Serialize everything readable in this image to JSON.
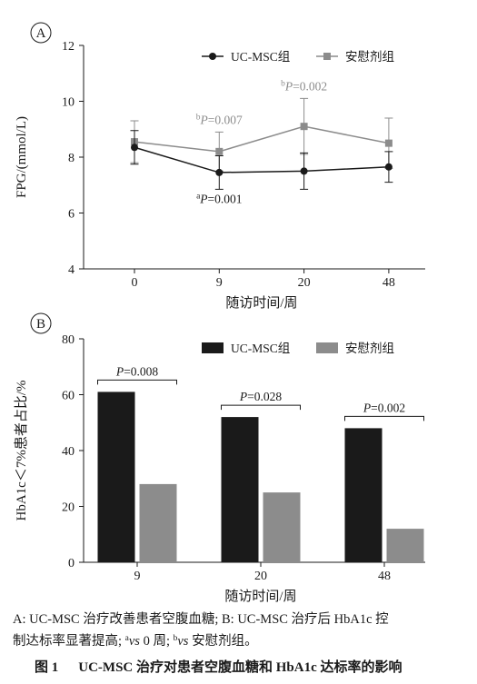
{
  "chart_data": [
    {
      "panel": "A",
      "type": "line",
      "x": [
        "0",
        "9",
        "20",
        "48"
      ],
      "xlabel": "随访时间/周",
      "ylabel": "FPG/(mmol/L)",
      "ylim": [
        4,
        12
      ],
      "yticks": [
        "4",
        "6",
        "8",
        "10",
        "12"
      ],
      "grid": false,
      "legend": "top-right",
      "series": [
        {
          "name": "UC-MSC组",
          "values": [
            8.35,
            7.45,
            7.5,
            7.65
          ],
          "error": [
            0.6,
            0.6,
            0.65,
            0.55
          ],
          "color": "#1a1a1a",
          "marker": "circle"
        },
        {
          "name": "安慰剂组",
          "values": [
            8.55,
            8.2,
            9.1,
            8.5
          ],
          "error": [
            0.75,
            0.7,
            1.0,
            0.9
          ],
          "color": "#8c8c8c",
          "marker": "square"
        }
      ],
      "annotations": [
        {
          "series": "安慰剂组",
          "x": "9",
          "position": "above",
          "sup": "b",
          "p_symbol": "P",
          "value": "=0.007"
        },
        {
          "series": "安慰剂组",
          "x": "20",
          "position": "above",
          "sup": "b",
          "p_symbol": "P",
          "value": "=0.002"
        },
        {
          "series": "UC-MSC组",
          "x": "9",
          "position": "below",
          "sup": "a",
          "p_symbol": "P",
          "value": "=0.001"
        }
      ]
    },
    {
      "panel": "B",
      "type": "bar",
      "categories": [
        "9",
        "20",
        "48"
      ],
      "xlabel": "随访时间/周",
      "ylabel": "HbA1c＜7%患者占比/%",
      "ylim": [
        0,
        80
      ],
      "yticks": [
        "0",
        "20",
        "40",
        "60",
        "80"
      ],
      "grid": false,
      "legend": "top-right",
      "series": [
        {
          "name": "UC-MSC组",
          "values": [
            61,
            52,
            48
          ],
          "color": "#1a1a1a"
        },
        {
          "name": "安慰剂组",
          "values": [
            28,
            25,
            12
          ],
          "color": "#8c8c8c"
        }
      ],
      "comparisons": [
        {
          "category": "9",
          "p_symbol": "P",
          "value": "=0.008"
        },
        {
          "category": "20",
          "p_symbol": "P",
          "value": "=0.028"
        },
        {
          "category": "48",
          "p_symbol": "P",
          "value": "=0.002"
        }
      ]
    }
  ],
  "caption": {
    "note_line1": "A: UC-MSC 治疗改善患者空腹血糖; B: UC-MSC 治疗后 HbA1c 控",
    "note_line2": {
      "t1": "制达标率显著提高; ",
      "sup_a": "a",
      "vs_1": "vs",
      "t2": " 0 周; ",
      "sup_b": "b",
      "vs_2": "vs",
      "t3": " 安慰剂组。"
    },
    "figure_label": "图 1",
    "title": "UC-MSC 治疗对患者空腹血糖和 HbA1c 达标率的影响"
  }
}
